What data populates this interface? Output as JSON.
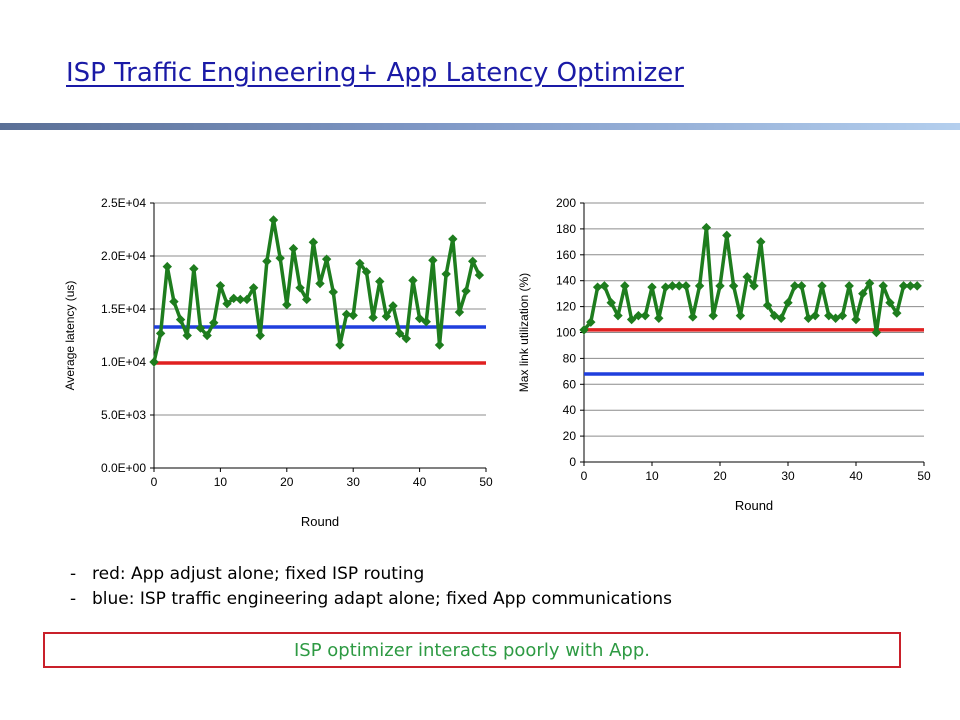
{
  "slide": {
    "title": "ISP Traffic Engineering+ App Latency Optimizer",
    "notes": [
      "red: App adjust alone; fixed ISP routing",
      "blue: ISP traffic engineering adapt alone; fixed App communications"
    ],
    "note_dash": "-",
    "callout": "ISP optimizer interacts poorly with App."
  },
  "colors": {
    "series": "#1e7d1e",
    "red_line": "#e02020",
    "blue_line": "#1f3fdd",
    "title": "#1a1aa6",
    "callout_text": "#2e9a43",
    "callout_border": "#c9202a"
  },
  "chart_data": [
    {
      "type": "line",
      "xlabel": "Round",
      "ylabel": "Average latency (us)",
      "xlim": [
        0,
        50
      ],
      "ylim": [
        0,
        25000
      ],
      "x_ticks": [
        0,
        10,
        20,
        30,
        40,
        50
      ],
      "y_ticks": [
        0,
        5000,
        10000,
        15000,
        20000,
        25000
      ],
      "y_tick_labels": [
        "0.0E+00",
        "5.0E+03",
        "1.0E+04",
        "1.5E+04",
        "2.0E+04",
        "2.5E+04"
      ],
      "grid": "horizontal",
      "legend": "none",
      "series": [
        {
          "color": "green",
          "marker": "diamond",
          "x": [
            0,
            1,
            2,
            3,
            4,
            5,
            6,
            7,
            8,
            9,
            10,
            11,
            12,
            13,
            14,
            15,
            16,
            17,
            18,
            19,
            20,
            21,
            22,
            23,
            24,
            25,
            26,
            27,
            28,
            29,
            30,
            31,
            32,
            33,
            34,
            35,
            36,
            37,
            38,
            39,
            40,
            41,
            42,
            43,
            44,
            45,
            46,
            47,
            48,
            49
          ],
          "values": [
            10000,
            12700,
            19000,
            15700,
            14000,
            12500,
            18800,
            13200,
            12500,
            13700,
            17200,
            15500,
            16000,
            15900,
            15900,
            17000,
            12500,
            19500,
            23400,
            19800,
            15400,
            20700,
            17000,
            15900,
            21300,
            17400,
            19700,
            16600,
            11600,
            14500,
            14400,
            19300,
            18500,
            14200,
            17600,
            14300,
            15300,
            12700,
            12200,
            17700,
            14100,
            13800,
            19600,
            11600,
            18300,
            21600,
            14700,
            16700,
            19500,
            18200
          ]
        },
        {
          "color": "red",
          "kind": "reference",
          "x": [
            0,
            50
          ],
          "values": [
            9900,
            9900
          ]
        },
        {
          "color": "blue",
          "kind": "reference",
          "x": [
            0,
            50
          ],
          "values": [
            13300,
            13300
          ]
        }
      ]
    },
    {
      "type": "line",
      "xlabel": "Round",
      "ylabel": "Max link utilization (%)",
      "xlim": [
        0,
        50
      ],
      "ylim": [
        0,
        200
      ],
      "x_ticks": [
        0,
        10,
        20,
        30,
        40,
        50
      ],
      "y_ticks": [
        0,
        20,
        40,
        60,
        80,
        100,
        120,
        140,
        160,
        180,
        200
      ],
      "y_tick_labels": [
        "0",
        "20",
        "40",
        "60",
        "80",
        "100",
        "120",
        "140",
        "160",
        "180",
        "200"
      ],
      "grid": "horizontal",
      "legend": "none",
      "series": [
        {
          "color": "green",
          "marker": "diamond",
          "x": [
            0,
            1,
            2,
            3,
            4,
            5,
            6,
            7,
            8,
            9,
            10,
            11,
            12,
            13,
            14,
            15,
            16,
            17,
            18,
            19,
            20,
            21,
            22,
            23,
            24,
            25,
            26,
            27,
            28,
            29,
            30,
            31,
            32,
            33,
            34,
            35,
            36,
            37,
            38,
            39,
            40,
            41,
            42,
            43,
            44,
            45,
            46,
            47,
            48,
            49
          ],
          "values": [
            102,
            108,
            135,
            136,
            123,
            113,
            136,
            110,
            113,
            113,
            135,
            111,
            135,
            136,
            136,
            136,
            112,
            136,
            181,
            113,
            136,
            175,
            136,
            113,
            143,
            136,
            170,
            121,
            113,
            111,
            123,
            136,
            136,
            111,
            113,
            136,
            113,
            111,
            113,
            136,
            110,
            130,
            138,
            100,
            136,
            123,
            115,
            136,
            136,
            136
          ]
        },
        {
          "color": "red",
          "kind": "reference",
          "x": [
            0,
            50
          ],
          "values": [
            102,
            102
          ]
        },
        {
          "color": "blue",
          "kind": "reference",
          "x": [
            0,
            50
          ],
          "values": [
            68,
            68
          ]
        }
      ]
    }
  ]
}
